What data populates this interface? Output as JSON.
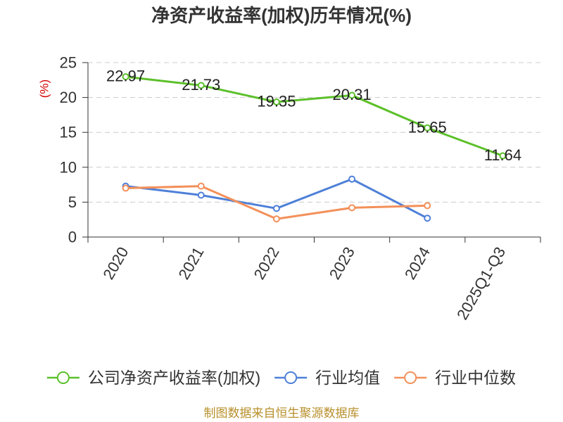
{
  "footer": "制图数据来自恒生聚源数据库",
  "chart_data": {
    "type": "line",
    "title": "净资产收益率(加权)历年情况(%)",
    "ylabel": "(%)",
    "categories": [
      "2020",
      "2021",
      "2022",
      "2023",
      "2024",
      "2025Q1-Q3"
    ],
    "ylim": [
      0,
      25
    ],
    "yticks": [
      0,
      5,
      10,
      15,
      20,
      25
    ],
    "grid": true,
    "legend_position": "bottom",
    "series": [
      {
        "name": "公司净资产收益率(加权)",
        "color": "#5cc02a",
        "show_labels": true,
        "values": [
          22.97,
          21.73,
          19.35,
          20.31,
          15.65,
          11.64
        ]
      },
      {
        "name": "行业均值",
        "color": "#4e80d8",
        "show_labels": false,
        "values": [
          7.3,
          6.0,
          4.1,
          8.3,
          2.7,
          null
        ]
      },
      {
        "name": "行业中位数",
        "color": "#f3905a",
        "show_labels": false,
        "values": [
          7.0,
          7.3,
          2.6,
          4.2,
          4.5,
          null
        ]
      }
    ]
  }
}
